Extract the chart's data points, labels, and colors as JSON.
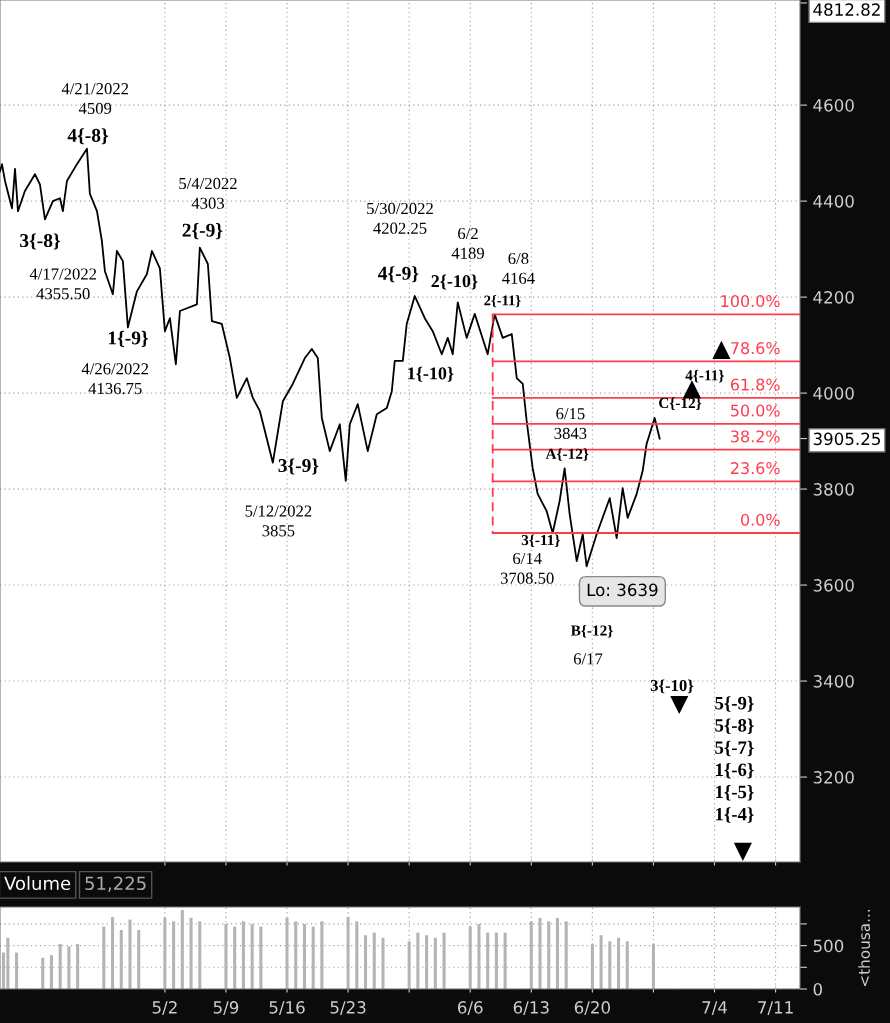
{
  "chart_data": [
    {
      "type": "line",
      "x": [
        "2022-04-13T02:24",
        "2022-04-13T07:47",
        "2022-04-13T16:10",
        "2022-04-14T11:20",
        "2022-04-14T19:44",
        "2022-04-15T03:48",
        "2022-04-15T22:57",
        "2022-04-17T02:30",
        "2022-04-17T16:16",
        "2022-04-18T06:03",
        "2022-04-19T03:53",
        "2022-04-19T23:23",
        "2022-04-20T07:26",
        "2022-04-20T18:32",
        "2022-04-21T22:05",
        "2022-04-23T01:38",
        "2022-04-23T09:42",
        "2022-04-24T05:11",
        "2022-04-24T18:38",
        "2022-04-25T03:01",
        "2022-04-26T00:52",
        "2022-04-26T11:57",
        "2022-04-27T04:25",
        "2022-04-27T18:12",
        "2022-04-28T19:03",
        "2022-04-29T22:36",
        "2022-04-30T12:23",
        "2022-05-01T10:13",
        "2022-05-02T00:00",
        "2022-05-02T13:47",
        "2022-05-03T06:14",
        "2022-05-03T17:20",
        "2022-05-05T16:02",
        "2022-05-06T00:06",
        "2022-05-06T22:16",
        "2022-05-07T09:22",
        "2022-05-08T12:35",
        "2022-05-09T10:45",
        "2022-05-10T05:54",
        "2022-05-11T09:27",
        "2022-05-12T01:55",
        "2022-05-12T21:04",
        "2022-05-14T09:01",
        "2022-05-15T12:35",
        "2022-05-16T15:48",
        "2022-05-18T01:03",
        "2022-05-18T20:12",
        "2022-05-19T12:40",
        "2022-05-19T23:46",
        "2022-05-20T21:36",
        "2022-05-22T01:09",
        "2022-05-22T17:37",
        "2022-05-23T04:42",
        "2022-05-24T02:33",
        "2022-05-25T06:06",
        "2022-05-26T06:58",
        "2022-05-27T10:31",
        "2022-05-28T00:17",
        "2022-05-28T08:21",
        "2022-05-29T06:32",
        "2022-05-29T17:17",
        "2022-05-30T15:27",
        "2022-05-31T19:00",
        "2022-06-01T16:51",
        "2022-06-02T17:43",
        "2022-06-03T10:11",
        "2022-06-03T23:57",
        "2022-06-04T13:44",
        "2022-06-05T14:15",
        "2022-06-06T12:26",
        "2022-06-08T00:03",
        "2022-06-08T19:12",
        "2022-06-09T17:23",
        "2022-06-10T18:14",
        "2022-06-11T08:01",
        "2022-06-12T00:29",
        "2022-06-12T11:14",
        "2022-06-13T03:42",
        "2022-06-13T17:28",
        "2022-06-14T18:20",
        "2022-06-15T10:48",
        "2022-06-16T05:57",
        "2022-06-16T19:44",
        "2022-06-17T09:30",
        "2022-06-18T05:00",
        "2022-06-18T21:27",
        "2022-06-19T08:12",
        "2022-06-20T11:46",
        "2022-06-21T23:43",
        "2022-06-22T18:52",
        "2022-06-23T11:20",
        "2022-06-24T01:06",
        "2022-06-25T01:58",
        "2022-06-25T18:26",
        "2022-06-26T05:11",
        "2022-06-27T03:22",
        "2022-06-27T17:08"
      ],
      "series": [
        {
          "color": "#000000",
          "values": [
            4462,
            4477,
            4442,
            4385,
            4467,
            4379,
            4421,
            4456,
            4435,
            4362,
            4400,
            4406,
            4379,
            4442,
            4477,
            4509,
            4415,
            4379,
            4317,
            4254,
            4206,
            4296,
            4275,
            4137,
            4212,
            4248,
            4296,
            4260,
            4129,
            4156,
            4060,
            4171,
            4185,
            4303,
            4269,
            4150,
            4144,
            4073,
            3990,
            4031,
            3990,
            3963,
            3855,
            3983,
            4019,
            4073,
            4092,
            4073,
            3948,
            3879,
            3935,
            3817,
            3935,
            3977,
            3879,
            3956,
            3969,
            4004,
            4067,
            4067,
            4144,
            4202.25,
            4156,
            4129,
            4081,
            4115,
            4081,
            4189,
            4115,
            4165,
            4081,
            4164,
            4115,
            4123,
            4031,
            4019,
            3942,
            3844,
            3790,
            3754,
            3708.5,
            3775,
            3843,
            3748,
            3650,
            3706,
            3639,
            3706,
            3781,
            3698,
            3802,
            3740,
            3790,
            3838,
            3894,
            3948,
            3905.25
          ]
        },
        {
          "name": "100.0%",
          "x": [
            "2022-06-08T13:49",
            "2022-07-13T19:12"
          ],
          "values": [
            4164,
            4164
          ],
          "color": "#ff3b4e"
        },
        {
          "name": "78.6%",
          "x": [
            "2022-06-08T13:49",
            "2022-07-13T19:12"
          ],
          "values": [
            4066,
            4066
          ],
          "color": "#ff3b4e"
        },
        {
          "name": "61.8%",
          "x": [
            "2022-06-08T13:49",
            "2022-07-13T19:12"
          ],
          "values": [
            3990,
            3990
          ],
          "color": "#ff3b4e"
        },
        {
          "name": "50.0%",
          "x": [
            "2022-06-08T13:49",
            "2022-07-13T19:12"
          ],
          "values": [
            3936,
            3936
          ],
          "color": "#ff3b4e"
        },
        {
          "name": "38.2%",
          "x": [
            "2022-06-08T13:49",
            "2022-07-13T19:12"
          ],
          "values": [
            3882,
            3882
          ],
          "color": "#ff3b4e"
        },
        {
          "name": "23.6%",
          "x": [
            "2022-06-08T13:49",
            "2022-07-13T19:12"
          ],
          "values": [
            3816,
            3816
          ],
          "color": "#ff3b4e"
        },
        {
          "name": "0.0%",
          "x": [
            "2022-06-08T13:49",
            "2022-07-13T19:12"
          ],
          "values": [
            3708.5,
            3708.5
          ],
          "color": "#ff3b4e"
        },
        {
          "x": [
            "2022-06-08T13:49",
            "2022-06-08T13:49"
          ],
          "values": [
            4164,
            3708.5
          ],
          "color": "#ff3b4e",
          "line_style": "dashed"
        },
        {
          "type": "scatter",
          "marker": "triangle",
          "x": [
            "2022-07-04T19:00",
            "2022-07-01T10:00"
          ],
          "values": [
            4090,
            4008
          ],
          "color": "#000000"
        },
        {
          "type": "scatter",
          "marker": "triangle-down",
          "x": [
            "2022-06-29T23:00",
            "2022-07-07T06:00"
          ],
          "values": [
            3350,
            3044
          ],
          "color": "#000000"
        }
      ],
      "xlim": [
        "2022-04-13T02:24",
        "2022-07-13T19:12"
      ],
      "xticks": [
        {
          "value": "2022-05-02",
          "label": null
        },
        {
          "value": "2022-05-09",
          "label": null
        },
        {
          "value": "2022-05-16",
          "label": null
        },
        {
          "value": "2022-05-23",
          "label": null
        },
        {
          "value": "2022-05-30",
          "label": null
        },
        {
          "value": "2022-06-06",
          "label": null
        },
        {
          "value": "2022-06-13",
          "label": null
        },
        {
          "value": "2022-06-20",
          "label": null
        },
        {
          "value": "2022-06-27",
          "label": null
        },
        {
          "value": "2022-07-04",
          "label": null
        },
        {
          "value": "2022-07-11",
          "label": null
        }
      ],
      "ylim": [
        3023,
        4819
      ],
      "yticks": [
        3200,
        3400,
        3600,
        3800,
        4000,
        4200,
        4400,
        4600,
        {
          "value": 3905.25,
          "label": "3905.25"
        },
        {
          "value": 4812.82,
          "label": "4812.82"
        }
      ],
      "tick_labels": "y",
      "grid": true,
      "line_style": "solid",
      "annotations": [
        "4/21/2022\n4509",
        "4{-8}",
        "3{-8}",
        "4/17/2022\n4355.50",
        "1{-9}",
        "4/26/2022\n4136.75",
        "5/4/2022\n4303",
        "2{-9}",
        "5/30/2022\n4202.25",
        "4{-9}",
        "6/2\n4189",
        "2{-10}",
        "6/8\n4164",
        "2{-11}",
        "1{-10}",
        "3{-9}",
        "5/12/2022\n3855",
        "6/15\n3843",
        "A{-12}",
        "3{-11}",
        "6/14\n3708.50",
        "Lo: 3639",
        "B{-12}",
        "6/17",
        "C{-12}",
        "4{-11}",
        "3{-10}",
        "5{-9}\n5{-8}\n5{-7}\n1{-6}\n1{-5}\n1{-4}"
      ]
    },
    {
      "type": "bar",
      "title": "Volume",
      "subtitle": "51,225",
      "y2label": "<thousa...",
      "x": [
        "2022-04-13T12:00",
        "2022-04-14",
        "2022-04-15",
        "2022-04-18",
        "2022-04-19",
        "2022-04-20",
        "2022-04-21",
        "2022-04-22",
        "2022-04-25",
        "2022-04-26",
        "2022-04-27",
        "2022-04-28",
        "2022-04-29",
        "2022-05-02",
        "2022-05-03",
        "2022-05-04",
        "2022-05-05",
        "2022-05-06",
        "2022-05-09",
        "2022-05-10",
        "2022-05-11",
        "2022-05-12",
        "2022-05-13",
        "2022-05-16",
        "2022-05-17",
        "2022-05-18",
        "2022-05-19",
        "2022-05-20",
        "2022-05-23",
        "2022-05-24",
        "2022-05-25",
        "2022-05-26",
        "2022-05-27",
        "2022-05-30",
        "2022-05-31",
        "2022-06-01",
        "2022-06-02",
        "2022-06-03",
        "2022-06-06",
        "2022-06-07",
        "2022-06-08",
        "2022-06-09",
        "2022-06-10",
        "2022-06-13",
        "2022-06-14",
        "2022-06-15",
        "2022-06-16",
        "2022-06-17",
        "2022-06-20",
        "2022-06-21",
        "2022-06-22",
        "2022-06-23",
        "2022-06-24",
        "2022-06-27"
      ],
      "values": [
        420,
        590,
        420,
        360,
        390,
        520,
        490,
        520,
        720,
        830,
        680,
        800,
        680,
        820,
        780,
        910,
        820,
        780,
        750,
        720,
        780,
        750,
        720,
        820,
        780,
        750,
        720,
        780,
        830,
        780,
        620,
        650,
        590,
        550,
        650,
        620,
        590,
        650,
        720,
        750,
        650,
        650,
        650,
        780,
        820,
        780,
        820,
        780,
        520,
        620,
        550,
        590,
        550,
        520
      ],
      "color": "#b4b4b4",
      "xlim": [
        "2022-04-13T02:24",
        "2022-07-13T19:12"
      ],
      "xticks": [
        {
          "value": "2022-05-02",
          "label": "5/2"
        },
        {
          "value": "2022-05-09",
          "label": "5/9"
        },
        {
          "value": "2022-05-16",
          "label": "5/16"
        },
        {
          "value": "2022-05-23",
          "label": "5/23"
        },
        {
          "value": "2022-05-30",
          "label": null
        },
        {
          "value": "2022-06-06",
          "label": "6/6"
        },
        {
          "value": "2022-06-13",
          "label": "6/13"
        },
        {
          "value": "2022-06-20",
          "label": "6/20"
        },
        {
          "value": "2022-06-27",
          "label": null
        },
        {
          "value": "2022-07-04",
          "label": "7/4"
        },
        {
          "value": "2022-07-11",
          "label": "7/11"
        }
      ],
      "ylim": [
        0,
        945
      ],
      "yticks": [
        0,
        {
          "value": 250,
          "label": null
        },
        500,
        {
          "value": 750,
          "label": null
        }
      ],
      "grid": true
    }
  ]
}
